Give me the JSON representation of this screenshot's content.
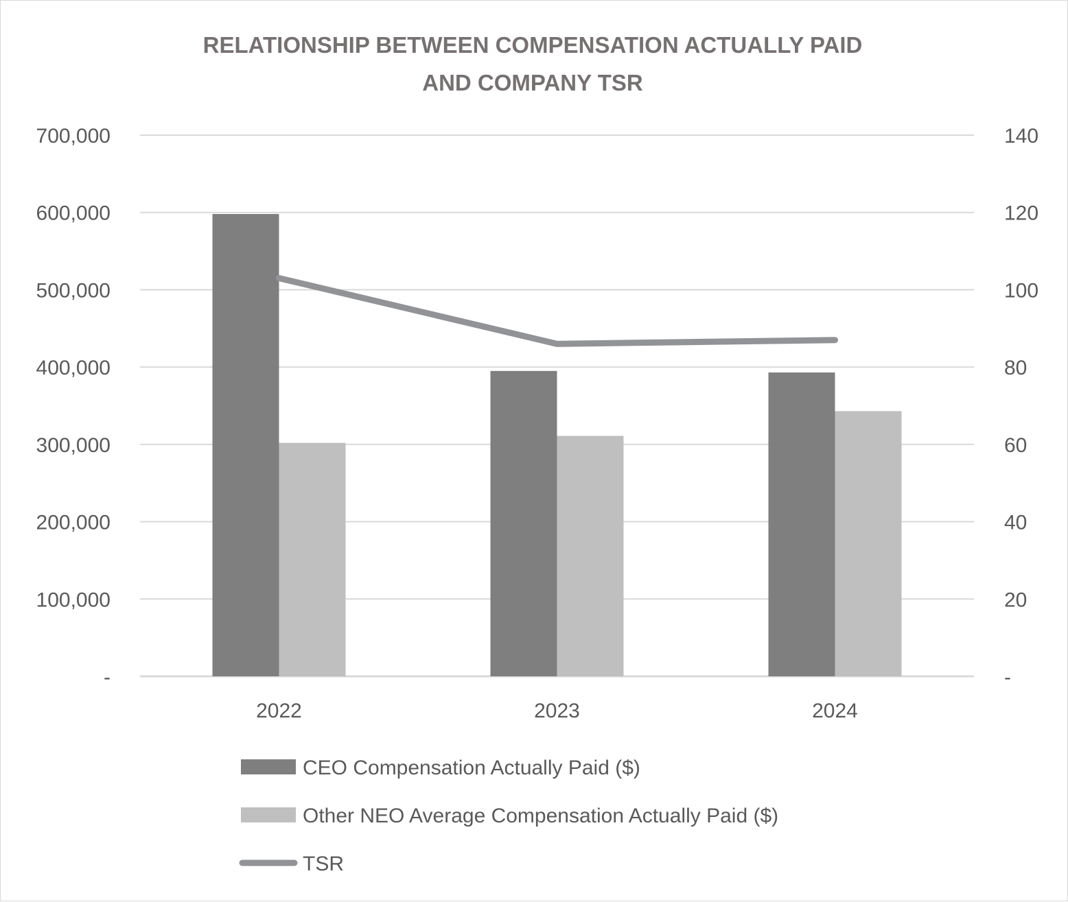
{
  "chart_data": {
    "type": "bar",
    "title_lines": [
      "RELATIONSHIP BETWEEN COMPENSATION ACTUALLY PAID",
      "AND COMPANY TSR"
    ],
    "categories": [
      "2022",
      "2023",
      "2024"
    ],
    "series": [
      {
        "name": "CEO Compensation Actually Paid ($)",
        "type": "bar",
        "axis": "left",
        "values": [
          598000,
          395000,
          393000
        ],
        "color": "#7f7f80"
      },
      {
        "name": "Other NEO Average Compensation Actually Paid ($)",
        "type": "bar",
        "axis": "left",
        "values": [
          302000,
          311000,
          343000
        ],
        "color": "#bfbfc0"
      },
      {
        "name": "TSR",
        "type": "line",
        "axis": "right",
        "values": [
          103,
          86,
          87
        ],
        "color": "#929396"
      }
    ],
    "y_left": {
      "ylim": [
        0,
        700000
      ],
      "ticks": [
        0,
        100000,
        200000,
        300000,
        400000,
        500000,
        600000,
        700000
      ],
      "tick_labels": [
        "-",
        "100,000",
        "200,000",
        "300,000",
        "400,000",
        "500,000",
        "600,000",
        "700,000"
      ]
    },
    "y_right": {
      "ylim": [
        0,
        140
      ],
      "ticks": [
        0,
        20,
        40,
        60,
        80,
        100,
        120,
        140
      ],
      "tick_labels": [
        "-",
        "20",
        "40",
        "60",
        "80",
        "100",
        "120",
        "140"
      ]
    },
    "grid": true,
    "legend_position": "bottom"
  }
}
